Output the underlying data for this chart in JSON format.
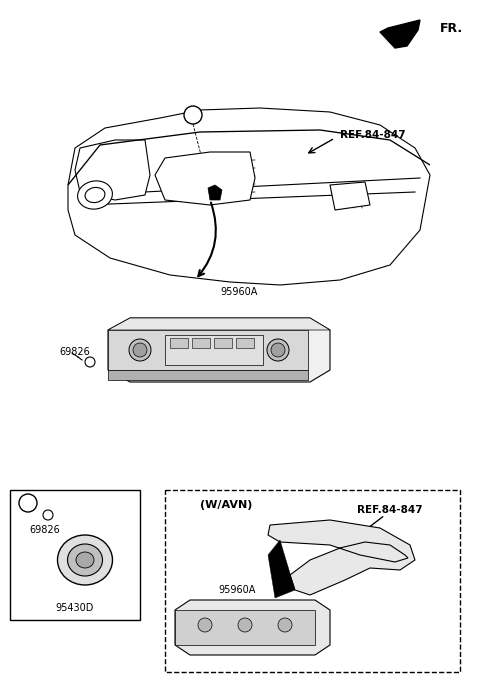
{
  "bg_color": "#ffffff",
  "line_color": "#000000",
  "fig_width": 4.8,
  "fig_height": 6.87,
  "dpi": 100,
  "fr_label": "FR.",
  "ref_label_1": "REF.84-847",
  "ref_label_2": "REF.84-847",
  "label_95960A_1": "95960A",
  "label_95960A_2": "95960A",
  "label_69826_1": "69826",
  "label_69826_2": "69826",
  "label_95430D": "95430D",
  "label_a": "a",
  "label_wavN": "(W/AVN)"
}
